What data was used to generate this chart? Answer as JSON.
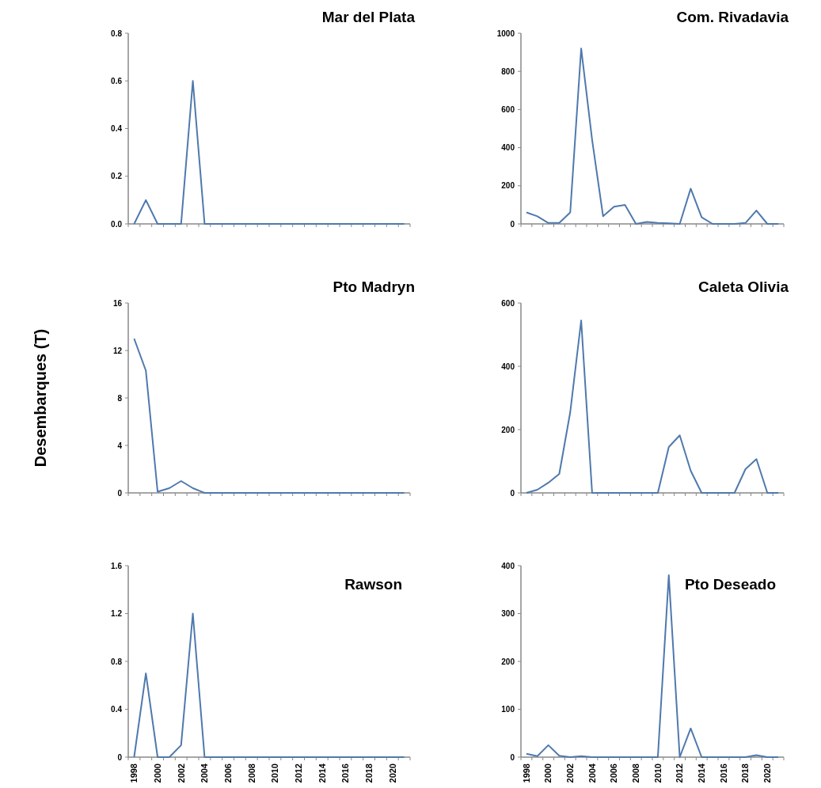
{
  "chart_data": [
    {
      "type": "line",
      "title": "Mar del Plata",
      "x": [
        1998,
        1999,
        2000,
        2001,
        2002,
        2003,
        2004,
        2005,
        2006,
        2007,
        2008,
        2009,
        2010,
        2011,
        2012,
        2013,
        2014,
        2015,
        2016,
        2017,
        2018,
        2019,
        2020,
        2021
      ],
      "series": [
        {
          "color": "#4f79ad",
          "values": [
            0,
            0.1,
            0,
            0,
            0,
            0.6,
            0,
            0,
            0,
            0,
            0,
            0,
            0,
            0,
            0,
            0,
            0,
            0,
            0,
            0,
            0,
            0,
            0,
            0
          ]
        }
      ],
      "xlim": [
        1997.5,
        2021.5
      ],
      "xticks": [
        1998,
        2000,
        2002,
        2004,
        2006,
        2008,
        2010,
        2012,
        2014,
        2016,
        2018,
        2020
      ],
      "ylim": [
        0,
        0.8
      ],
      "yticks": [
        {
          "value": 0,
          "label": "0.0"
        },
        0.2,
        0.4,
        0.6,
        0.8
      ],
      "tick_labels": "y",
      "marker": "none",
      "grid": false
    },
    {
      "type": "line",
      "title": "Com. Rivadavia",
      "x": [
        1998,
        1999,
        2000,
        2001,
        2002,
        2003,
        2004,
        2005,
        2006,
        2007,
        2008,
        2009,
        2010,
        2011,
        2012,
        2013,
        2014,
        2015,
        2016,
        2017,
        2018,
        2019,
        2020,
        2021
      ],
      "series": [
        {
          "color": "#4f79ad",
          "values": [
            60,
            40,
            5,
            5,
            60,
            920,
            440,
            40,
            90,
            100,
            0,
            10,
            5,
            3,
            0,
            185,
            35,
            0,
            0,
            0,
            5,
            70,
            0,
            0
          ]
        }
      ],
      "xlim": [
        1997.5,
        2021.5
      ],
      "xticks": [
        1998,
        2000,
        2002,
        2004,
        2006,
        2008,
        2010,
        2012,
        2014,
        2016,
        2018,
        2020
      ],
      "ylim": [
        0,
        1000
      ],
      "yticks": [
        0,
        200,
        400,
        600,
        800,
        1000
      ],
      "tick_labels": "y",
      "marker": "none",
      "grid": false
    },
    {
      "type": "line",
      "title": "Pto Madryn",
      "ylabel": "Desembarques (T)",
      "x": [
        1998,
        1999,
        2000,
        2001,
        2002,
        2003,
        2004,
        2005,
        2006,
        2007,
        2008,
        2009,
        2010,
        2011,
        2012,
        2013,
        2014,
        2015,
        2016,
        2017,
        2018,
        2019,
        2020,
        2021
      ],
      "series": [
        {
          "color": "#4f79ad",
          "values": [
            13,
            10.3,
            0.1,
            0.4,
            1,
            0.4,
            0,
            0,
            0,
            0,
            0,
            0,
            0,
            0,
            0,
            0,
            0,
            0,
            0,
            0,
            0,
            0,
            0,
            0
          ]
        }
      ],
      "xlim": [
        1997.5,
        2021.5
      ],
      "xticks": [
        1998,
        2000,
        2002,
        2004,
        2006,
        2008,
        2010,
        2012,
        2014,
        2016,
        2018,
        2020
      ],
      "ylim": [
        0,
        16
      ],
      "yticks": [
        0,
        4,
        8,
        12,
        16
      ],
      "tick_labels": "y",
      "marker": "none",
      "grid": false
    },
    {
      "type": "line",
      "title": "Caleta Olivia",
      "x": [
        1998,
        1999,
        2000,
        2001,
        2002,
        2003,
        2004,
        2005,
        2006,
        2007,
        2008,
        2009,
        2010,
        2011,
        2012,
        2013,
        2014,
        2015,
        2016,
        2017,
        2018,
        2019,
        2020,
        2021
      ],
      "series": [
        {
          "color": "#4f79ad",
          "values": [
            0,
            10,
            32,
            60,
            255,
            545,
            0,
            0,
            0,
            0,
            0,
            0,
            0,
            145,
            182,
            70,
            0,
            0,
            0,
            0,
            75,
            107,
            0,
            0
          ]
        }
      ],
      "xlim": [
        1997.5,
        2021.5
      ],
      "xticks": [
        1998,
        2000,
        2002,
        2004,
        2006,
        2008,
        2010,
        2012,
        2014,
        2016,
        2018,
        2020
      ],
      "ylim": [
        0,
        600
      ],
      "yticks": [
        0,
        200,
        400,
        600
      ],
      "tick_labels": "y",
      "marker": "none",
      "grid": false
    },
    {
      "type": "line",
      "title": "Rawson",
      "x": [
        1998,
        1999,
        2000,
        2001,
        2002,
        2003,
        2004,
        2005,
        2006,
        2007,
        2008,
        2009,
        2010,
        2011,
        2012,
        2013,
        2014,
        2015,
        2016,
        2017,
        2018,
        2019,
        2020,
        2021
      ],
      "series": [
        {
          "color": "#4f79ad",
          "values": [
            0,
            0.7,
            0,
            0,
            0.1,
            1.2,
            0,
            0,
            0,
            0,
            0,
            0,
            0,
            0,
            0,
            0,
            0,
            0,
            0,
            0,
            0,
            0,
            0,
            0
          ]
        }
      ],
      "xlim": [
        1997.5,
        2021.5
      ],
      "xticks": [
        1998,
        2000,
        2002,
        2004,
        2006,
        2008,
        2010,
        2012,
        2014,
        2016,
        2018,
        2020
      ],
      "ylim": [
        0,
        1.6
      ],
      "yticks": [
        0,
        0.4,
        0.8,
        1.2,
        1.6
      ],
      "marker": "none",
      "grid": false
    },
    {
      "type": "line",
      "title": "Pto Deseado",
      "x": [
        1998,
        1999,
        2000,
        2001,
        2002,
        2003,
        2004,
        2005,
        2006,
        2007,
        2008,
        2009,
        2010,
        2011,
        2012,
        2013,
        2014,
        2015,
        2016,
        2017,
        2018,
        2019,
        2020,
        2021
      ],
      "series": [
        {
          "color": "#4f79ad",
          "values": [
            7,
            2,
            25,
            3,
            0,
            2,
            0,
            0,
            0,
            0,
            0,
            0,
            0,
            380,
            0,
            60,
            0,
            0,
            0,
            0,
            0,
            4,
            0,
            0
          ]
        }
      ],
      "xlim": [
        1997.5,
        2021.5
      ],
      "xticks": [
        1998,
        2000,
        2002,
        2004,
        2006,
        2008,
        2010,
        2012,
        2014,
        2016,
        2018,
        2020
      ],
      "ylim": [
        0,
        400
      ],
      "yticks": [
        0,
        100,
        200,
        300,
        400
      ],
      "marker": "none",
      "grid": false
    }
  ]
}
